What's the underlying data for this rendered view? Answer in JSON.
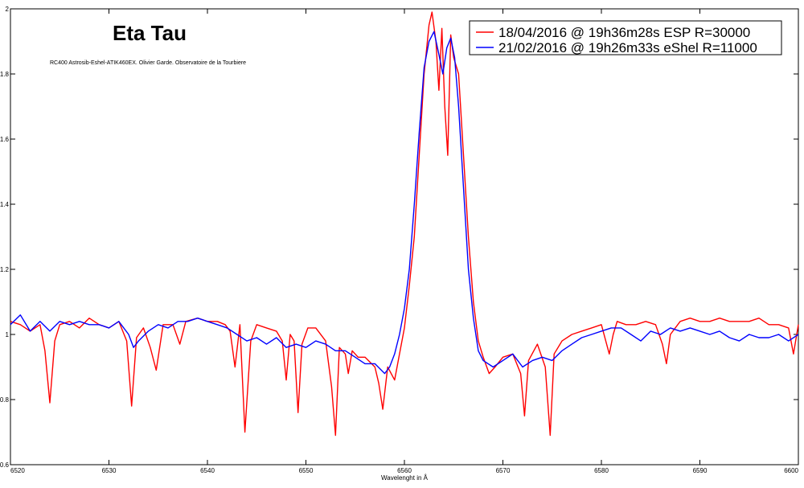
{
  "chart_data": {
    "type": "line",
    "title": "Eta Tau",
    "subtitle": "RC400 Astrosib-Eshel-ATIK460EX. Olivier Garde. Observatoire de la Tourbiere",
    "xlabel": "Wavelenght in Å",
    "ylabel": "",
    "xlim": [
      6520,
      6600
    ],
    "ylim": [
      0.6,
      2.0
    ],
    "xticks": [
      "6520",
      "6530",
      "6540",
      "6550",
      "6560",
      "6570",
      "6580",
      "6590",
      "6600"
    ],
    "yticks": [
      "0.6",
      "0.8",
      "1",
      "1.2",
      "1.4",
      "1.6",
      "1.8",
      "2"
    ],
    "legend_position": "top-right",
    "grid": false,
    "series": [
      {
        "name": "18/04/2016 @ 19h36m28s   ESP R=30000",
        "color": "#ff0000",
        "x": [
          6520,
          6521,
          6522,
          6523,
          6523.5,
          6524,
          6524.5,
          6525,
          6526,
          6527,
          6528,
          6529,
          6530,
          6531,
          6531.8,
          6532.3,
          6532.8,
          6533.5,
          6534.2,
          6534.8,
          6535.5,
          6536.5,
          6537.2,
          6537.8,
          6539,
          6540,
          6541,
          6541.8,
          6542.3,
          6542.8,
          6543.3,
          6543.8,
          6544.4,
          6545,
          6546,
          6547,
          6547.6,
          6548,
          6548.4,
          6548.8,
          6549.2,
          6549.6,
          6550.2,
          6551,
          6552,
          6552.6,
          6553,
          6553.4,
          6554,
          6554.3,
          6554.7,
          6555.3,
          6556,
          6557,
          6557.4,
          6557.8,
          6558.3,
          6559,
          6559.5,
          6560,
          6560.5,
          6561,
          6561.5,
          6562,
          6562.5,
          6562.8,
          6563.2,
          6563.5,
          6563.8,
          6564.1,
          6564.4,
          6564.7,
          6565,
          6565.5,
          6566,
          6566.5,
          6567,
          6567.5,
          6568,
          6568.6,
          6569.2,
          6570,
          6571,
          6571.8,
          6572.2,
          6572.6,
          6573.5,
          6574.3,
          6574.8,
          6575.2,
          6576,
          6577,
          6578,
          6579,
          6580,
          6580.8,
          6581.2,
          6581.6,
          6582.5,
          6583.5,
          6584.5,
          6585.5,
          6586.2,
          6586.6,
          6587,
          6588,
          6589,
          6590,
          6591,
          6592,
          6593,
          6594,
          6595,
          6596,
          6597,
          6598,
          6599,
          6599.5,
          6600
        ],
        "y": [
          1.04,
          1.03,
          1.01,
          1.03,
          0.95,
          0.79,
          0.98,
          1.03,
          1.04,
          1.02,
          1.05,
          1.03,
          1.02,
          1.04,
          0.98,
          0.78,
          0.99,
          1.02,
          0.96,
          0.89,
          1.03,
          1.03,
          0.97,
          1.04,
          1.05,
          1.04,
          1.04,
          1.03,
          1.01,
          0.9,
          1.03,
          0.7,
          0.98,
          1.03,
          1.02,
          1.01,
          0.98,
          0.86,
          1.0,
          0.98,
          0.76,
          0.97,
          1.02,
          1.02,
          0.98,
          0.84,
          0.69,
          0.96,
          0.94,
          0.88,
          0.95,
          0.93,
          0.93,
          0.9,
          0.85,
          0.77,
          0.9,
          0.86,
          0.94,
          1.02,
          1.15,
          1.3,
          1.55,
          1.8,
          1.95,
          1.99,
          1.9,
          1.75,
          1.94,
          1.7,
          1.55,
          1.92,
          1.85,
          1.8,
          1.55,
          1.3,
          1.1,
          0.98,
          0.93,
          0.88,
          0.9,
          0.93,
          0.94,
          0.88,
          0.75,
          0.92,
          0.97,
          0.9,
          0.69,
          0.94,
          0.98,
          1.0,
          1.01,
          1.02,
          1.03,
          0.94,
          1.0,
          1.04,
          1.03,
          1.03,
          1.04,
          1.03,
          0.97,
          0.91,
          1.0,
          1.04,
          1.05,
          1.04,
          1.04,
          1.05,
          1.04,
          1.04,
          1.04,
          1.05,
          1.03,
          1.03,
          1.02,
          0.94,
          1.03
        ]
      },
      {
        "name": "21/02/2016 @ 19h26m33s eShel R=11000",
        "color": "#0000ff",
        "x": [
          6520,
          6521,
          6522,
          6523,
          6524,
          6525,
          6526,
          6527,
          6528,
          6529,
          6530,
          6531,
          6532,
          6532.5,
          6533,
          6534,
          6535,
          6536,
          6537,
          6538,
          6539,
          6540,
          6541,
          6542,
          6543,
          6544,
          6545,
          6546,
          6547,
          6548,
          6549,
          6550,
          6551,
          6552,
          6553,
          6554,
          6555,
          6556,
          6557,
          6558,
          6558.5,
          6559,
          6559.5,
          6560,
          6560.5,
          6561,
          6561.5,
          6562,
          6562.5,
          6563,
          6563.5,
          6563.9,
          6564.3,
          6564.7,
          6565.1,
          6565.5,
          6566,
          6566.5,
          6567,
          6567.5,
          6568,
          6569,
          6570,
          6571,
          6572,
          6573,
          6574,
          6575,
          6576,
          6577,
          6578,
          6579,
          6580,
          6581,
          6582,
          6583,
          6584,
          6585,
          6586,
          6587,
          6588,
          6589,
          6590,
          6591,
          6592,
          6593,
          6594,
          6595,
          6596,
          6597,
          6598,
          6599,
          6600
        ],
        "y": [
          1.03,
          1.06,
          1.01,
          1.04,
          1.01,
          1.04,
          1.03,
          1.04,
          1.03,
          1.03,
          1.02,
          1.04,
          1.0,
          0.96,
          0.98,
          1.01,
          1.03,
          1.02,
          1.04,
          1.04,
          1.05,
          1.04,
          1.03,
          1.02,
          1.0,
          0.98,
          0.99,
          0.97,
          0.99,
          0.96,
          0.97,
          0.96,
          0.98,
          0.97,
          0.95,
          0.95,
          0.93,
          0.91,
          0.91,
          0.88,
          0.9,
          0.94,
          1.0,
          1.08,
          1.2,
          1.4,
          1.62,
          1.82,
          1.9,
          1.93,
          1.86,
          1.8,
          1.88,
          1.91,
          1.85,
          1.7,
          1.45,
          1.2,
          1.05,
          0.95,
          0.92,
          0.9,
          0.92,
          0.94,
          0.9,
          0.92,
          0.93,
          0.92,
          0.95,
          0.97,
          0.99,
          1.0,
          1.01,
          1.02,
          1.02,
          1.0,
          0.98,
          1.01,
          1.0,
          1.02,
          1.01,
          1.02,
          1.01,
          1.0,
          1.01,
          0.99,
          0.98,
          1.0,
          0.99,
          0.99,
          1.0,
          0.98,
          1.0
        ]
      }
    ]
  }
}
